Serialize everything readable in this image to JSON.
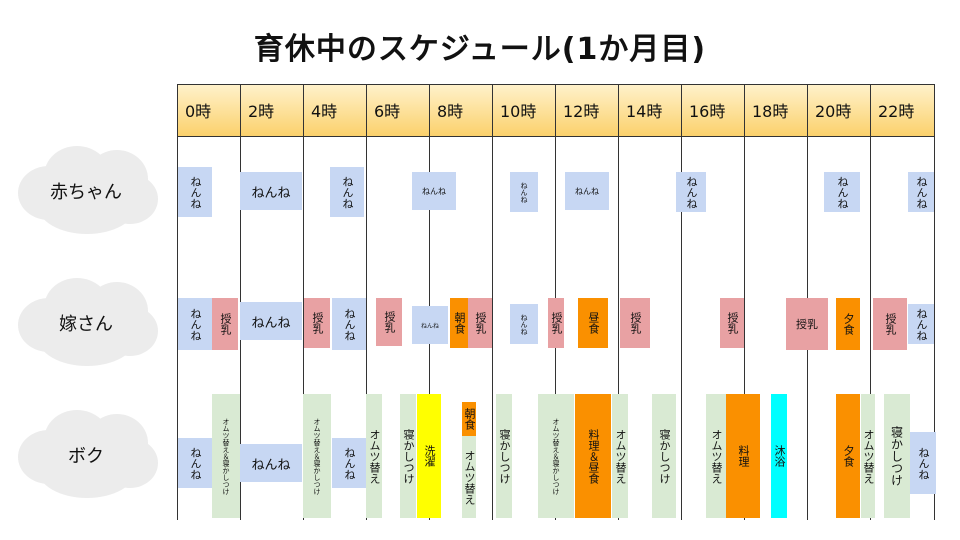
{
  "title": "育休中のスケジュール(1か月目)",
  "times": [
    "0時",
    "2時",
    "4時",
    "6時",
    "8時",
    "10時",
    "12時",
    "14時",
    "16時",
    "18時",
    "20時",
    "22時"
  ],
  "rows": {
    "baby": "赤ちゃん",
    "wife": "嫁さん",
    "me": "ボク"
  },
  "labels": {
    "nenne": "ねんね",
    "junyu": "授乳",
    "omutsu": "オムツ替え",
    "omutsu_nekashi": "オムツ替え＆寝かしつけ",
    "nekashi": "寝かしつけ",
    "asashoku": "朝食",
    "chushoku": "昼食",
    "yushoku": "夕食",
    "sentaku": "洗濯",
    "ryouri": "料理",
    "ryouri_chushoku": "料理＆昼食",
    "mokuyoku": "沐浴"
  },
  "colors": {
    "blue": "#c7d7f3",
    "pink": "#e8a1a3",
    "orange": "#fa9000",
    "green": "#d9ead3",
    "yellow": "#ffff00",
    "cyan": "#00ffff",
    "header": "#fbd16c"
  }
}
